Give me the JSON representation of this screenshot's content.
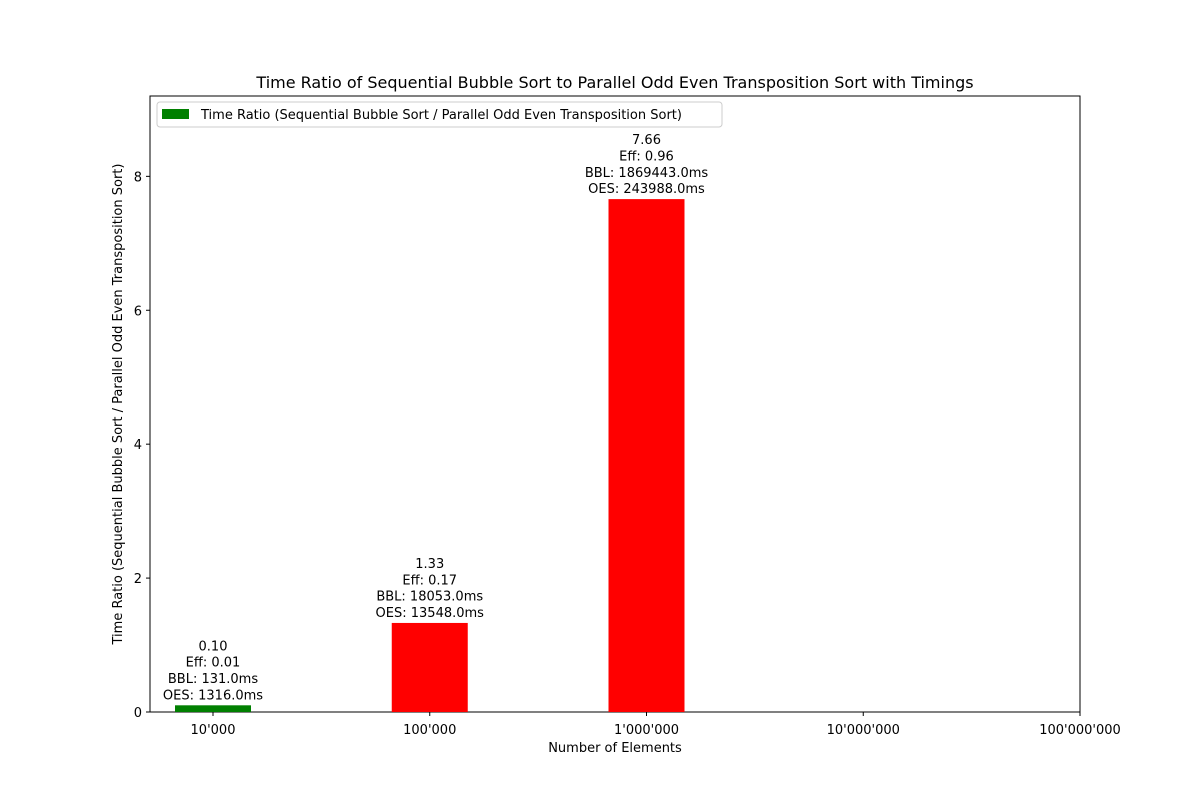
{
  "chart_data": {
    "type": "bar",
    "title": "Time Ratio of Sequential Bubble Sort to Parallel Odd Even Transposition Sort with Timings",
    "xlabel": "Number of Elements",
    "ylabel": "Time Ratio (Sequential Bubble Sort / Parallel Odd Even Transposition Sort)",
    "categories": [
      "10'000",
      "100'000",
      "1'000'000",
      "10'000'000",
      "100'000'000"
    ],
    "values": [
      0.1,
      1.33,
      7.66,
      null,
      null
    ],
    "bar_colors": [
      "#008000",
      "#ff0000",
      "#ff0000"
    ],
    "bar_labels": [
      [
        "0.10",
        "Eff: 0.01",
        "BBL: 131.0ms",
        "OES: 1316.0ms"
      ],
      [
        "1.33",
        "Eff: 0.17",
        "BBL: 18053.0ms",
        "OES: 13548.0ms"
      ],
      [
        "7.66",
        "Eff: 0.96",
        "BBL: 1869443.0ms",
        "OES: 243988.0ms"
      ]
    ],
    "series": [
      {
        "name": "Time Ratio (Sequential Bubble Sort / Parallel Odd Even Transposition Sort)",
        "values": [
          0.1,
          1.33,
          7.66,
          null,
          null
        ],
        "color": "#008000"
      }
    ],
    "ylim": [
      0,
      9.2
    ],
    "yticks": [
      0,
      2,
      4,
      6,
      8
    ],
    "grid": false,
    "legend_position": "top-left"
  }
}
